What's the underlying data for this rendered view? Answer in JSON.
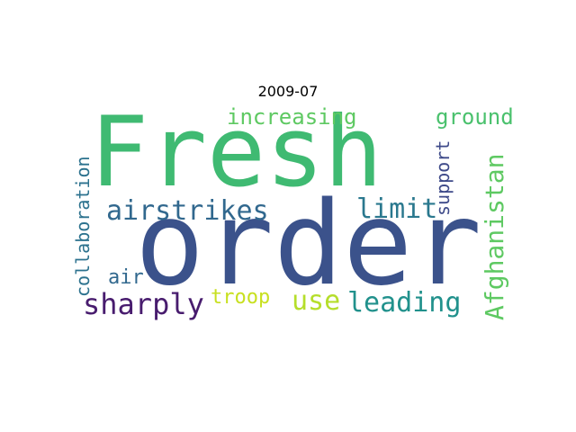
{
  "figure": {
    "title": "2009-07"
  },
  "wordcloud": {
    "words": [
      {
        "text": "Fresh",
        "color": "#3fba72"
      },
      {
        "text": "order",
        "color": "#3b528b"
      },
      {
        "text": "airstrikes",
        "color": "#31688e"
      },
      {
        "text": "increasing",
        "color": "#5ec962"
      },
      {
        "text": "limit",
        "color": "#2a788e"
      },
      {
        "text": "ground",
        "color": "#4ac16d"
      },
      {
        "text": "support",
        "color": "#3e4a89"
      },
      {
        "text": "Afghanistan",
        "color": "#5ec962"
      },
      {
        "text": "collaboration",
        "color": "#2c728e"
      },
      {
        "text": "air",
        "color": "#31688e"
      },
      {
        "text": "sharply",
        "color": "#481c6e"
      },
      {
        "text": "troop",
        "color": "#c8e020"
      },
      {
        "text": "use",
        "color": "#b5de2b"
      },
      {
        "text": "leading",
        "color": "#21918c"
      }
    ]
  }
}
